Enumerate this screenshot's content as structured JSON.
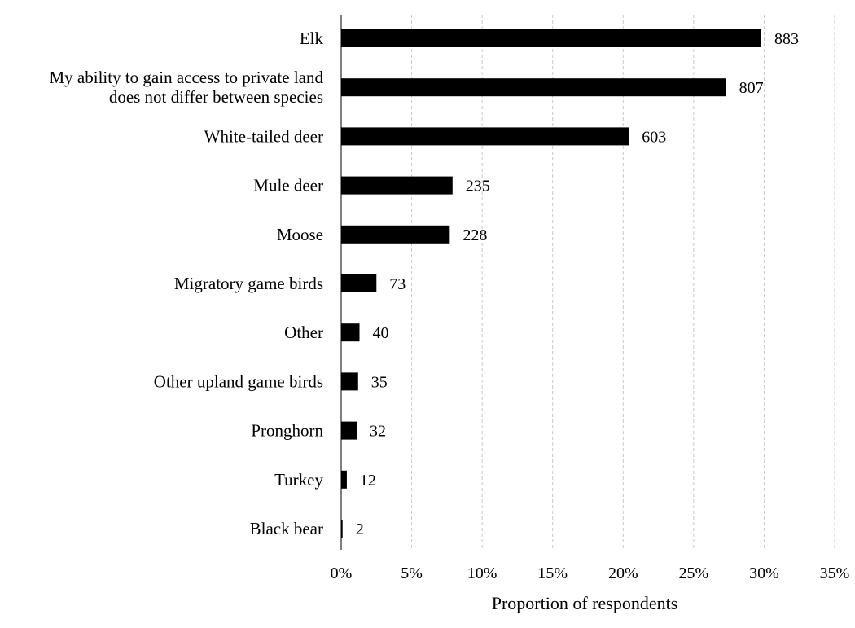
{
  "chart_data": {
    "type": "bar",
    "orientation": "horizontal",
    "categories": [
      "Elk",
      "My ability to gain access to private land does not differ between species",
      "White-tailed deer",
      "Mule deer",
      "Moose",
      "Migratory game birds",
      "Other",
      "Other upland game birds",
      "Pronghorn",
      "Turkey",
      "Black bear"
    ],
    "category_lines": [
      [
        "Elk"
      ],
      [
        "My ability to gain access to private land",
        "does not differ between species"
      ],
      [
        "White-tailed deer"
      ],
      [
        "Mule deer"
      ],
      [
        "Moose"
      ],
      [
        "Migratory game birds"
      ],
      [
        "Other"
      ],
      [
        "Other upland game birds"
      ],
      [
        "Pronghorn"
      ],
      [
        "Turkey"
      ],
      [
        "Black bear"
      ]
    ],
    "values": [
      29.8,
      27.3,
      20.4,
      7.9,
      7.7,
      2.5,
      1.3,
      1.2,
      1.1,
      0.4,
      0.1
    ],
    "data_labels": [
      "883",
      "807",
      "603",
      "235",
      "228",
      "73",
      "40",
      "35",
      "32",
      "12",
      "2"
    ],
    "xlabel": "Proportion of respondents",
    "xlim": [
      0,
      35
    ],
    "x_ticks": [
      "0%",
      "5%",
      "10%",
      "15%",
      "20%",
      "25%",
      "30%",
      "35%"
    ],
    "grid": true,
    "bar_color": "#000000"
  }
}
